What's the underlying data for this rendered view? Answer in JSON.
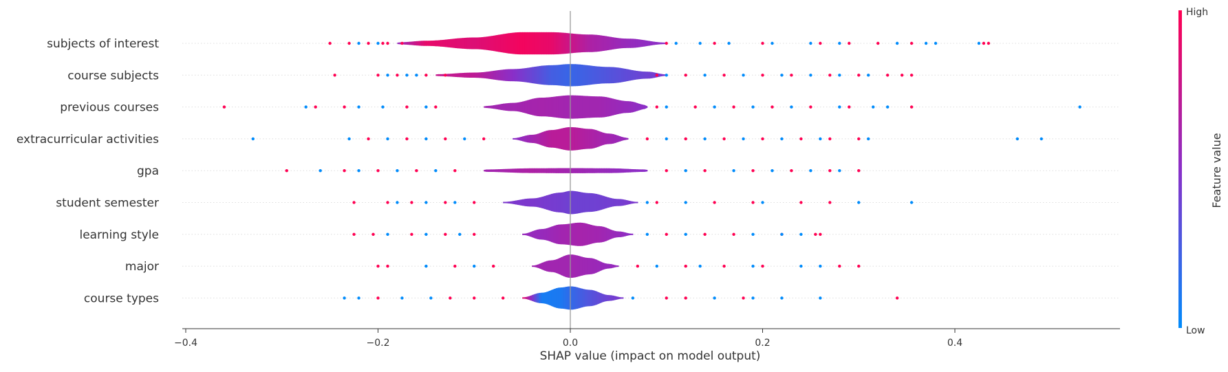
{
  "chart_data": {
    "type": "scatter",
    "subtype": "shap-violin-summary",
    "title": "",
    "xlabel": "SHAP value (impact on model output)",
    "xlim": [
      -0.41,
      0.57
    ],
    "xticks": [
      -0.4,
      -0.2,
      0.0,
      0.2,
      0.4
    ],
    "xtick_labels": [
      "−0.4",
      "−0.2",
      "0.0",
      "0.2",
      "0.4"
    ],
    "zero_line": 0.0,
    "grid": false,
    "colorbar": {
      "label": "Feature value",
      "high_label": "High",
      "low_label": "Low",
      "high_color": "#ff0052",
      "mid_color": "#8a2fc8",
      "low_color": "#008bfb",
      "position": "right"
    },
    "features": [
      {
        "name": "subjects of interest",
        "min": -0.25,
        "max": 0.435,
        "violin": [
          [
            -0.18,
            0.08,
            0.55
          ],
          [
            -0.15,
            0.22,
            0.9
          ],
          [
            -0.1,
            0.5,
            0.85
          ],
          [
            -0.05,
            0.95,
            0.95
          ],
          [
            -0.02,
            0.95,
            0.9
          ],
          [
            0.02,
            0.75,
            0.65
          ],
          [
            0.06,
            0.4,
            0.55
          ],
          [
            0.1,
            0.06,
            0.5
          ]
        ],
        "outliers_high": [
          -0.25,
          -0.23,
          -0.21,
          -0.195,
          -0.19,
          -0.175,
          0.1,
          0.15,
          0.2,
          0.26,
          0.29,
          0.32,
          0.355,
          0.43,
          0.435
        ],
        "outliers_low": [
          -0.22,
          -0.2,
          0.11,
          0.135,
          0.165,
          0.21,
          0.25,
          0.28,
          0.34,
          0.37,
          0.38,
          0.425
        ]
      },
      {
        "name": "course subjects",
        "min": -0.245,
        "max": 0.355,
        "violin": [
          [
            -0.14,
            0.08,
            0.75
          ],
          [
            -0.1,
            0.22,
            0.72
          ],
          [
            -0.06,
            0.52,
            0.5
          ],
          [
            -0.02,
            0.85,
            0.25
          ],
          [
            0.0,
            0.95,
            0.2
          ],
          [
            0.04,
            0.7,
            0.3
          ],
          [
            0.08,
            0.3,
            0.4
          ],
          [
            0.1,
            0.06,
            0.45
          ]
        ],
        "outliers_high": [
          -0.245,
          -0.2,
          -0.18,
          -0.15,
          -0.13,
          0.09,
          0.12,
          0.16,
          0.2,
          0.23,
          0.27,
          0.3,
          0.33,
          0.345,
          0.355
        ],
        "outliers_low": [
          -0.19,
          -0.17,
          -0.16,
          0.1,
          0.14,
          0.18,
          0.22,
          0.25,
          0.28,
          0.31
        ]
      },
      {
        "name": "previous courses",
        "min": -0.36,
        "max": 0.53,
        "violin": [
          [
            -0.09,
            0.08,
            0.6
          ],
          [
            -0.06,
            0.35,
            0.6
          ],
          [
            -0.03,
            0.8,
            0.62
          ],
          [
            0.0,
            1.0,
            0.6
          ],
          [
            0.03,
            0.9,
            0.6
          ],
          [
            0.06,
            0.5,
            0.55
          ],
          [
            0.08,
            0.15,
            0.5
          ]
        ],
        "outliers_high": [
          -0.36,
          -0.265,
          -0.235,
          -0.17,
          -0.14,
          0.09,
          0.13,
          0.17,
          0.21,
          0.25,
          0.29,
          0.355
        ],
        "outliers_low": [
          -0.275,
          -0.22,
          -0.195,
          -0.15,
          0.1,
          0.15,
          0.19,
          0.23,
          0.28,
          0.315,
          0.33,
          0.53
        ]
      },
      {
        "name": "extracurricular activities",
        "min": -0.33,
        "max": 0.49,
        "violin": [
          [
            -0.06,
            0.05,
            0.5
          ],
          [
            -0.04,
            0.35,
            0.6
          ],
          [
            -0.02,
            0.75,
            0.7
          ],
          [
            0.0,
            1.0,
            0.7
          ],
          [
            0.02,
            0.85,
            0.65
          ],
          [
            0.04,
            0.45,
            0.6
          ],
          [
            0.06,
            0.08,
            0.55
          ]
        ],
        "outliers_high": [
          -0.21,
          -0.17,
          -0.13,
          -0.09,
          0.08,
          0.12,
          0.16,
          0.2,
          0.24,
          0.27,
          0.3
        ],
        "outliers_low": [
          -0.33,
          -0.23,
          -0.19,
          -0.15,
          -0.11,
          0.1,
          0.14,
          0.18,
          0.22,
          0.26,
          0.31,
          0.465,
          0.49
        ]
      },
      {
        "name": "gpa",
        "min": -0.295,
        "max": 0.3,
        "violin": [
          [
            -0.09,
            0.1,
            0.6
          ],
          [
            -0.04,
            0.2,
            0.65
          ],
          [
            0.0,
            0.22,
            0.6
          ],
          [
            0.04,
            0.2,
            0.55
          ],
          [
            0.08,
            0.1,
            0.5
          ]
        ],
        "outliers_high": [
          -0.295,
          -0.235,
          -0.2,
          -0.16,
          -0.12,
          0.1,
          0.14,
          0.19,
          0.23,
          0.27,
          0.3
        ],
        "outliers_low": [
          -0.26,
          -0.22,
          -0.18,
          -0.14,
          0.12,
          0.17,
          0.21,
          0.25,
          0.28
        ]
      },
      {
        "name": "student semester",
        "min": -0.225,
        "max": 0.355,
        "violin": [
          [
            -0.07,
            0.05,
            0.45
          ],
          [
            -0.04,
            0.35,
            0.45
          ],
          [
            -0.01,
            0.85,
            0.42
          ],
          [
            0.0,
            1.0,
            0.4
          ],
          [
            0.02,
            0.8,
            0.4
          ],
          [
            0.05,
            0.3,
            0.42
          ],
          [
            0.07,
            0.05,
            0.45
          ]
        ],
        "outliers_high": [
          -0.225,
          -0.19,
          -0.165,
          -0.13,
          -0.1,
          0.09,
          0.15,
          0.19,
          0.24,
          0.27
        ],
        "outliers_low": [
          -0.18,
          -0.15,
          -0.12,
          0.08,
          0.12,
          0.2,
          0.3,
          0.355
        ]
      },
      {
        "name": "learning style",
        "min": -0.225,
        "max": 0.26,
        "violin": [
          [
            -0.05,
            0.05,
            0.55
          ],
          [
            -0.03,
            0.45,
            0.55
          ],
          [
            -0.01,
            0.85,
            0.6
          ],
          [
            0.01,
            1.0,
            0.62
          ],
          [
            0.03,
            0.7,
            0.6
          ],
          [
            0.05,
            0.25,
            0.55
          ],
          [
            0.065,
            0.05,
            0.5
          ]
        ],
        "outliers_high": [
          -0.225,
          -0.205,
          -0.165,
          -0.13,
          -0.1,
          0.1,
          0.14,
          0.17,
          0.22,
          0.255,
          0.26
        ],
        "outliers_low": [
          -0.19,
          -0.15,
          -0.115,
          0.08,
          0.12,
          0.19,
          0.22,
          0.24
        ]
      },
      {
        "name": "major",
        "min": -0.2,
        "max": 0.3,
        "violin": [
          [
            -0.04,
            0.05,
            0.6
          ],
          [
            -0.02,
            0.5,
            0.6
          ],
          [
            0.0,
            1.0,
            0.6
          ],
          [
            0.02,
            0.7,
            0.58
          ],
          [
            0.04,
            0.2,
            0.55
          ],
          [
            0.05,
            0.05,
            0.55
          ]
        ],
        "outliers_high": [
          -0.2,
          -0.19,
          -0.12,
          -0.08,
          0.07,
          0.12,
          0.16,
          0.2,
          0.28,
          0.3
        ],
        "outliers_low": [
          -0.15,
          -0.1,
          0.09,
          0.135,
          0.19,
          0.24,
          0.26
        ]
      },
      {
        "name": "course types",
        "min": -0.235,
        "max": 0.34,
        "violin": [
          [
            -0.05,
            0.05,
            0.92
          ],
          [
            -0.03,
            0.45,
            0.08
          ],
          [
            -0.01,
            0.9,
            0.1
          ],
          [
            0.0,
            1.0,
            0.18
          ],
          [
            0.02,
            0.7,
            0.3
          ],
          [
            0.04,
            0.25,
            0.4
          ],
          [
            0.055,
            0.05,
            0.45
          ]
        ],
        "outliers_high": [
          -0.2,
          -0.125,
          -0.1,
          -0.07,
          0.1,
          0.12,
          0.18,
          0.34
        ],
        "outliers_low": [
          -0.235,
          -0.22,
          -0.175,
          -0.145,
          0.065,
          0.15,
          0.19,
          0.22,
          0.26
        ]
      }
    ]
  }
}
